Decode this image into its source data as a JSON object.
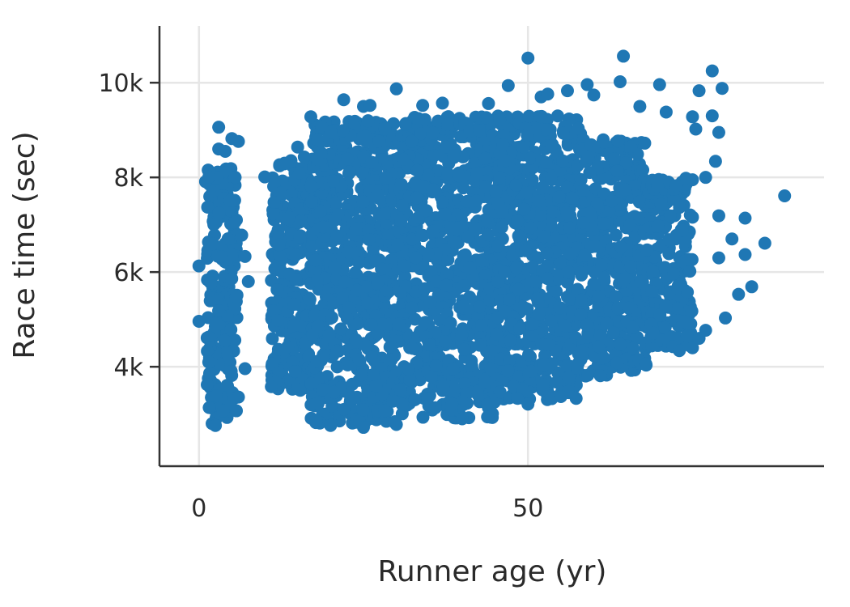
{
  "chart_data": {
    "type": "scatter",
    "title": "",
    "xlabel": "Runner age (yr)",
    "ylabel": "Race time (sec)",
    "xlim": [
      -6,
      95
    ],
    "ylim": [
      1900,
      11200
    ],
    "x_ticks": [
      {
        "value": 0,
        "label": "0"
      },
      {
        "value": 50,
        "label": "50"
      }
    ],
    "y_ticks": [
      {
        "value": 4000,
        "label": "4k"
      },
      {
        "value": 6000,
        "label": "6k"
      },
      {
        "value": 8000,
        "label": "8k"
      },
      {
        "value": 10000,
        "label": "10k"
      }
    ],
    "grid": true,
    "legend": "none",
    "marker_color": "#1f77b4",
    "series": [
      {
        "points": [
          [
            0.0,
            4960
          ],
          [
            0.0,
            6130
          ],
          [
            1.0,
            7910
          ],
          [
            1.5,
            8010
          ],
          [
            2.0,
            2800
          ],
          [
            2.5,
            2760
          ],
          [
            3.0,
            9060
          ],
          [
            3.0,
            8600
          ],
          [
            4.0,
            8550
          ],
          [
            5.0,
            8820
          ],
          [
            5.5,
            8000
          ],
          [
            6.0,
            8760
          ],
          [
            6.5,
            6780
          ],
          [
            7.0,
            6330
          ],
          [
            7.5,
            5800
          ],
          [
            7.0,
            3960
          ],
          [
            6.0,
            3360
          ],
          [
            10.0,
            8010
          ],
          [
            11.0,
            3580
          ],
          [
            13.0,
            8300
          ],
          [
            15.0,
            8640
          ],
          [
            16.0,
            8430
          ],
          [
            17.0,
            9280
          ],
          [
            17.0,
            7810
          ],
          [
            18.0,
            8800
          ],
          [
            22.0,
            9640
          ],
          [
            25.0,
            9500
          ],
          [
            26.0,
            9520
          ],
          [
            30.0,
            9870
          ],
          [
            34.0,
            9520
          ],
          [
            37.0,
            9570
          ],
          [
            44.0,
            9560
          ],
          [
            47.0,
            9940
          ],
          [
            50.0,
            10520
          ],
          [
            52.0,
            9700
          ],
          [
            53.0,
            9760
          ],
          [
            56.0,
            9830
          ],
          [
            59.0,
            9960
          ],
          [
            60.0,
            9740
          ],
          [
            64.0,
            10020
          ],
          [
            64.5,
            10560
          ],
          [
            67.0,
            9500
          ],
          [
            70.0,
            9960
          ],
          [
            71.0,
            9380
          ],
          [
            75.0,
            9280
          ],
          [
            75.5,
            9020
          ],
          [
            76.0,
            9830
          ],
          [
            78.0,
            10250
          ],
          [
            79.0,
            8950
          ],
          [
            79.5,
            9880
          ],
          [
            78.0,
            9300
          ],
          [
            78.5,
            8340
          ],
          [
            77.0,
            8000
          ],
          [
            75.0,
            7950
          ],
          [
            75.0,
            7160
          ],
          [
            79.0,
            7190
          ],
          [
            83.0,
            7140
          ],
          [
            89.0,
            7610
          ],
          [
            86.0,
            6610
          ],
          [
            81.0,
            6700
          ],
          [
            83.0,
            6370
          ],
          [
            79.0,
            6300
          ],
          [
            84.0,
            5690
          ],
          [
            82.0,
            5530
          ],
          [
            80.0,
            5030
          ],
          [
            77.0,
            4770
          ],
          [
            76.0,
            4600
          ],
          [
            75.0,
            4400
          ],
          [
            73.0,
            4340
          ],
          [
            66.0,
            4390
          ],
          [
            61.0,
            3810
          ],
          [
            55.0,
            3370
          ],
          [
            50.0,
            3210
          ],
          [
            40.0,
            2900
          ],
          [
            30.0,
            2780
          ],
          [
            25.0,
            2720
          ],
          [
            20.0,
            2760
          ]
        ]
      }
    ],
    "clusters": [
      {
        "x": [
          1.2,
          5.8
        ],
        "y": [
          2900,
          8200
        ],
        "count": 220
      },
      {
        "x": [
          11.0,
          17.0
        ],
        "y": [
          3500,
          8400
        ],
        "count": 260
      },
      {
        "x": [
          17.0,
          30.0
        ],
        "y": [
          2800,
          9200
        ],
        "count": 700
      },
      {
        "x": [
          30.0,
          45.0
        ],
        "y": [
          2900,
          9300
        ],
        "count": 700
      },
      {
        "x": [
          45.0,
          58.0
        ],
        "y": [
          3300,
          9300
        ],
        "count": 650
      },
      {
        "x": [
          58.0,
          68.0
        ],
        "y": [
          3800,
          8800
        ],
        "count": 420
      },
      {
        "x": [
          68.0,
          75.0
        ],
        "y": [
          4400,
          8000
        ],
        "count": 200
      }
    ]
  }
}
